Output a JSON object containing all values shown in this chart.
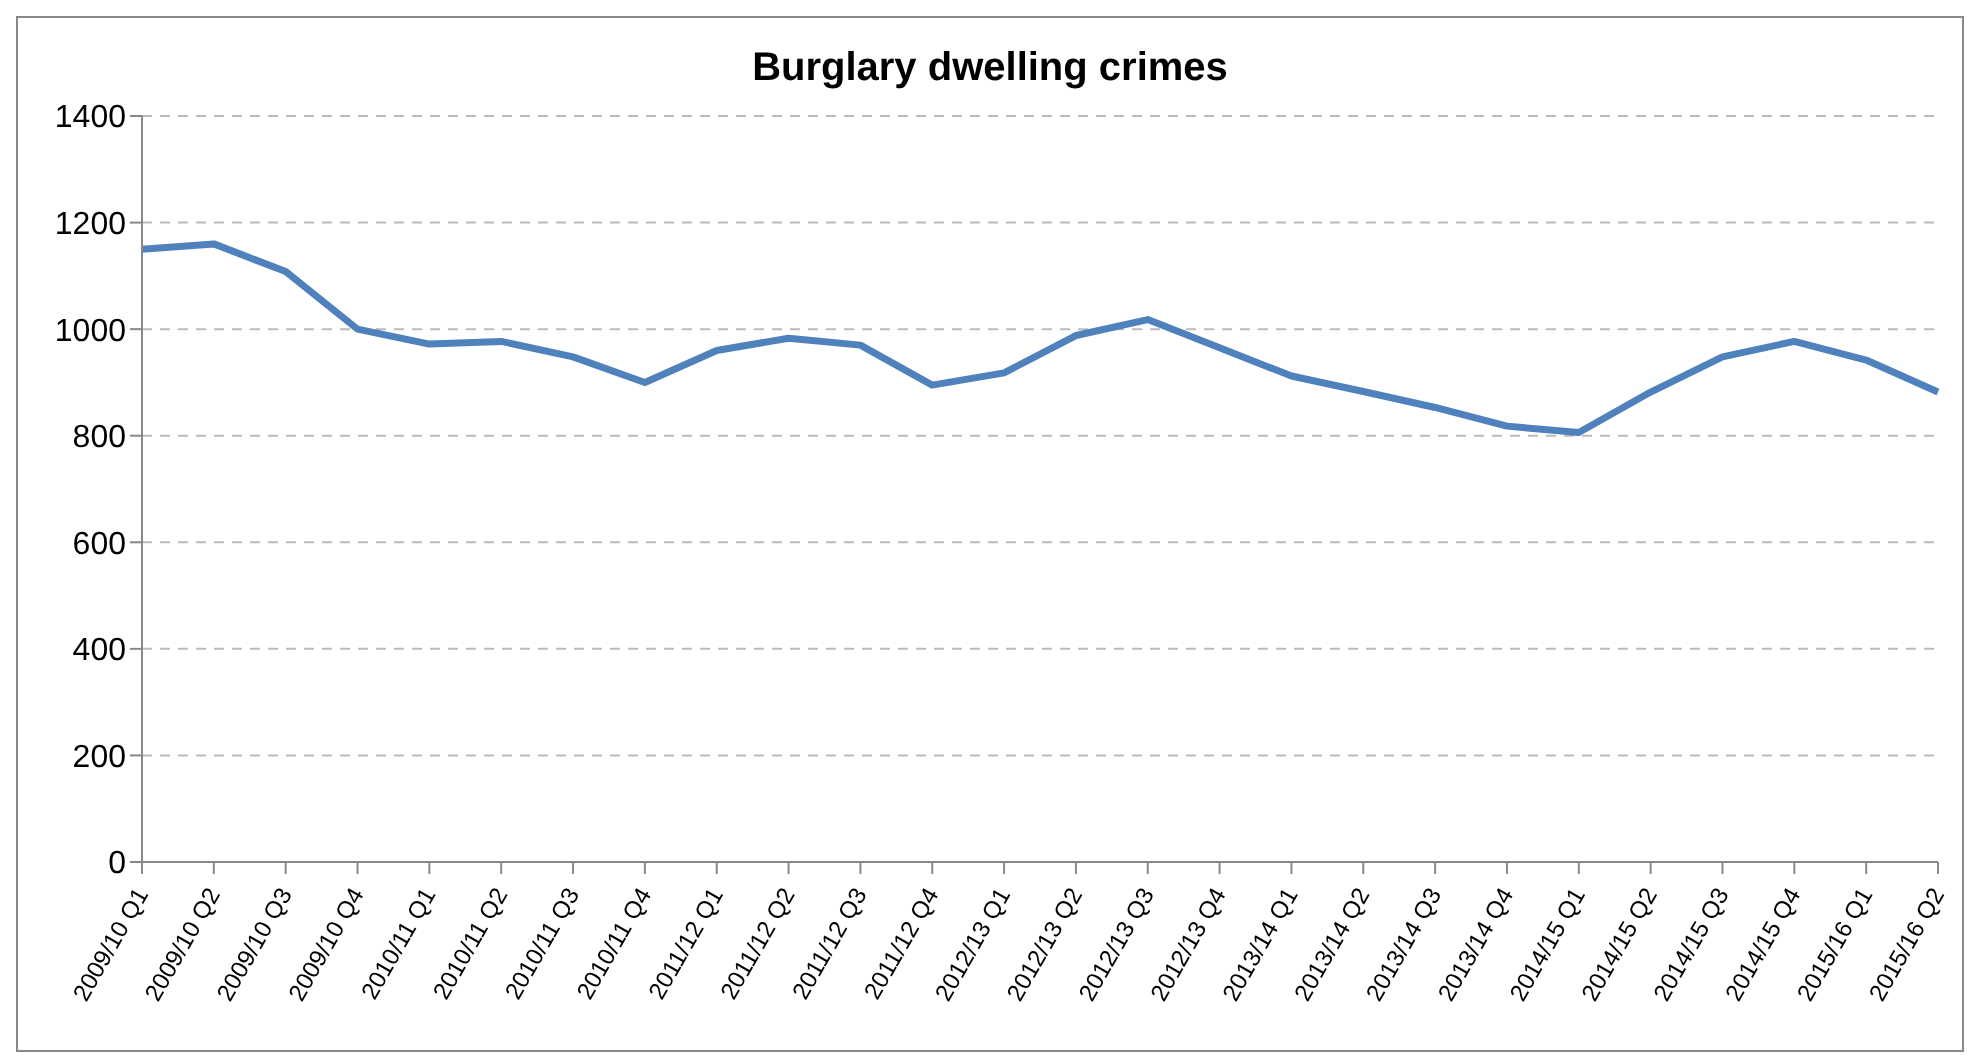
{
  "chart_data": {
    "type": "line",
    "title": "Burglary dwelling crimes",
    "categories": [
      "2009/10 Q1",
      "2009/10 Q2",
      "2009/10 Q3",
      "2009/10 Q4",
      "2010/11 Q1",
      "2010/11 Q2",
      "2010/11 Q3",
      "2010/11 Q4",
      "2011/12 Q1",
      "2011/12 Q2",
      "2011/12 Q3",
      "2011/12 Q4",
      "2012/13 Q1",
      "2012/13 Q2",
      "2012/13 Q3",
      "2012/13 Q4",
      "2013/14 Q1",
      "2013/14 Q2",
      "2013/14 Q3",
      "2013/14 Q4",
      "2014/15 Q1",
      "2014/15 Q2",
      "2014/15 Q3",
      "2014/15 Q4",
      "2015/16 Q1",
      "2015/16 Q2"
    ],
    "series": [
      {
        "color": "#4f81bd",
        "values": [
          1150,
          1160,
          1108,
          1000,
          972,
          977,
          948,
          900,
          960,
          983,
          970,
          895,
          918,
          988,
          1018,
          965,
          912,
          883,
          853,
          818,
          806,
          882,
          948,
          977,
          942,
          882
        ]
      }
    ],
    "ylim": [
      0,
      1400
    ],
    "yticks": [
      0,
      200,
      400,
      600,
      800,
      1000,
      1200,
      1400
    ],
    "grid": "y",
    "legend": false,
    "marker": "none",
    "line_style": "solid"
  }
}
